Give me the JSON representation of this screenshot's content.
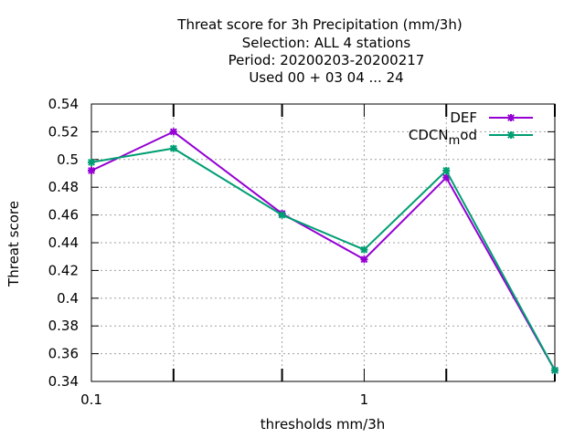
{
  "chart_data": {
    "type": "line",
    "title_lines": [
      "Threat score  for 3h Precipitation (mm/3h)",
      "Selection: ALL      4 stations",
      "Period: 20200203-20200217",
      "Used  00 + 03 04 ... 24"
    ],
    "xlabel": "thresholds mm/3h",
    "ylabel": "Threat score",
    "x_scale": "log",
    "xlim": [
      0.1,
      5
    ],
    "ylim": [
      0.34,
      0.54
    ],
    "y_ticks": [
      0.34,
      0.36,
      0.38,
      0.4,
      0.42,
      0.44,
      0.46,
      0.48,
      0.5,
      0.52,
      0.54
    ],
    "y_tick_labels": [
      "0.34",
      "0.36",
      "0.38",
      "0.4",
      "0.42",
      "0.44",
      "0.46",
      "0.48",
      "0.5",
      "0.52",
      "0.54"
    ],
    "x_ticks_major": [
      0.1,
      1
    ],
    "x_tick_labels": [
      "0.1",
      "1"
    ],
    "x_ticks_minor": [
      0.2,
      0.5,
      2,
      5
    ],
    "grid": true,
    "legend_position": "top-right",
    "x": [
      0.1,
      0.2,
      0.5,
      1,
      2,
      5
    ],
    "series": [
      {
        "name": "DEF",
        "label_main": "DEF",
        "label_sub": "",
        "label_after": "",
        "color": "#9400d3",
        "values": [
          0.492,
          0.52,
          0.461,
          0.428,
          0.487,
          0.348
        ]
      },
      {
        "name": "CDCN_mod",
        "label_main": "CDCN",
        "label_sub": "m",
        "label_after": "od",
        "color": "#009e73",
        "values": [
          0.498,
          0.508,
          0.46,
          0.435,
          0.492,
          0.348
        ]
      }
    ]
  }
}
